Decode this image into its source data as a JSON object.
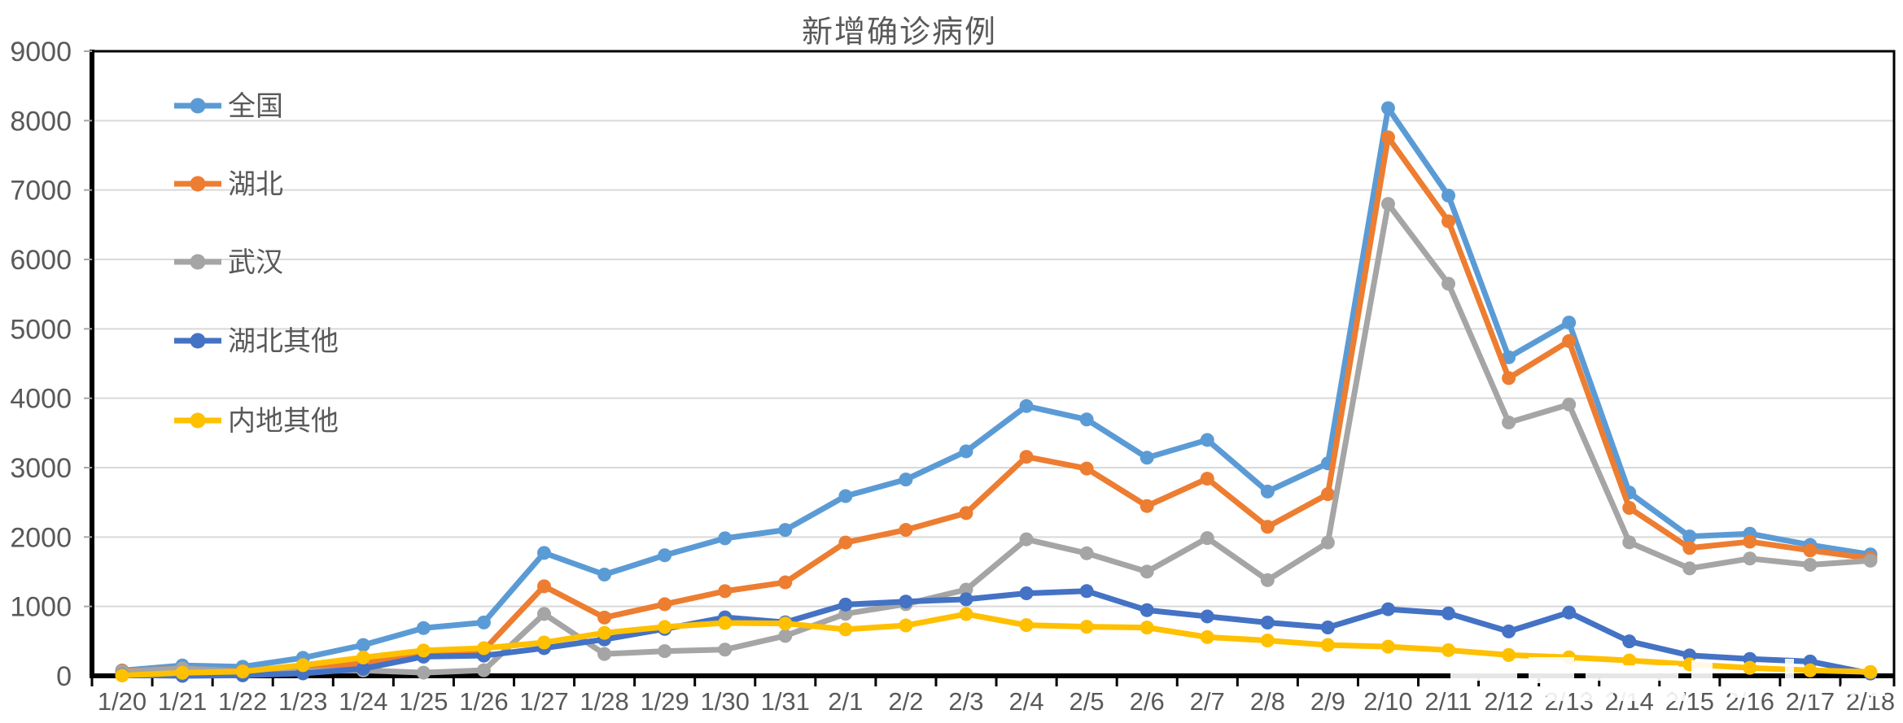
{
  "title": "新增确诊病例",
  "chart_data": {
    "type": "line",
    "title": "新增确诊病例",
    "categories": [
      "1/20",
      "1/21",
      "1/22",
      "1/23",
      "1/24",
      "1/25",
      "1/26",
      "1/27",
      "1/28",
      "1/29",
      "1/30",
      "1/31",
      "2/1",
      "2/2",
      "2/3",
      "2/4",
      "2/5",
      "2/6",
      "2/7",
      "2/8",
      "2/9",
      "2/10",
      "2/11",
      "2/12",
      "2/13",
      "2/14",
      "2/15",
      "2/16",
      "2/17",
      "2/18"
    ],
    "series": [
      {
        "key": "national",
        "name": "全国",
        "color": "#5B9BD5",
        "values": [
          77,
          149,
          131,
          259,
          444,
          688,
          769,
          1771,
          1459,
          1737,
          1982,
          2102,
          2590,
          2829,
          3235,
          3887,
          3694,
          3143,
          3399,
          2656,
          3062,
          8180,
          6920,
          4590,
          5090,
          2641,
          2009,
          2048,
          1886,
          1749
        ]
      },
      {
        "key": "hubei",
        "name": "湖北",
        "color": "#ED7D31",
        "values": [
          72,
          105,
          69,
          105,
          180,
          323,
          371,
          1291,
          840,
          1032,
          1220,
          1347,
          1921,
          2103,
          2345,
          3156,
          2987,
          2447,
          2841,
          2147,
          2618,
          7760,
          6550,
          4290,
          4823,
          2420,
          1843,
          1933,
          1807,
          1693
        ]
      },
      {
        "key": "wuhan",
        "name": "武汉",
        "color": "#A5A5A5",
        "values": [
          60,
          105,
          62,
          70,
          77,
          46,
          80,
          892,
          315,
          356,
          378,
          576,
          894,
          1033,
          1242,
          1967,
          1766,
          1501,
          1985,
          1379,
          1921,
          6800,
          5650,
          3650,
          3910,
          1923,
          1548,
          1690,
          1600,
          1660
        ]
      },
      {
        "key": "hubei-other",
        "name": "湖北其他",
        "color": "#4472C4",
        "values": [
          12,
          0,
          7,
          35,
          103,
          277,
          291,
          399,
          525,
          676,
          842,
          771,
          1027,
          1070,
          1103,
          1189,
          1221,
          946,
          856,
          768,
          697,
          960,
          900,
          640,
          913,
          497,
          295,
          243,
          207,
          33
        ]
      },
      {
        "key": "mainland-other",
        "name": "内地其他",
        "color": "#FFC000",
        "values": [
          5,
          44,
          62,
          154,
          264,
          365,
          398,
          480,
          619,
          705,
          762,
          755,
          669,
          726,
          890,
          731,
          707,
          696,
          558,
          509,
          444,
          420,
          370,
          300,
          267,
          221,
          166,
          115,
          79,
          56
        ]
      }
    ],
    "ylim": [
      0,
      9000
    ],
    "y_ticks": [
      0,
      1000,
      2000,
      3000,
      4000,
      5000,
      6000,
      7000,
      8000,
      9000
    ],
    "grid": true,
    "legend_position": "inside-top-left",
    "grid_color": "#D9D9D9",
    "axis_color": "#000000",
    "tick_color": "#A6A6A6",
    "label_color": "#595959"
  }
}
